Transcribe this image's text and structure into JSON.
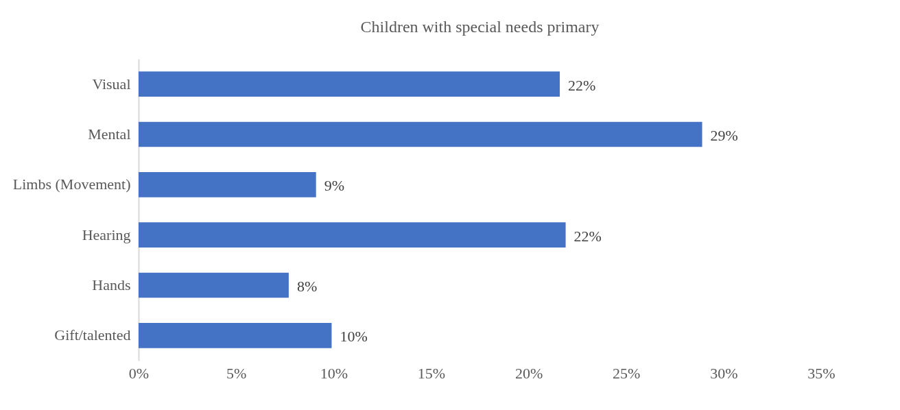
{
  "chart_data": {
    "type": "bar",
    "orientation": "horizontal",
    "title": "Children with special needs primary",
    "categories": [
      "Visual",
      "Mental",
      "Limbs (Movement)",
      "Hearing",
      "Hands",
      "Gift/talented"
    ],
    "values": [
      21.6,
      28.9,
      9.1,
      21.9,
      7.7,
      9.9
    ],
    "value_labels": [
      "22%",
      "29%",
      "9%",
      "22%",
      "8%",
      "10%"
    ],
    "color": "#4472c4",
    "xlim": [
      0,
      35
    ],
    "xticks": [
      {
        "value": 0,
        "label": "0%"
      },
      {
        "value": 5,
        "label": "5%"
      },
      {
        "value": 10,
        "label": "10%"
      },
      {
        "value": 15,
        "label": "15%"
      },
      {
        "value": 20,
        "label": "20%"
      },
      {
        "value": 25,
        "label": "25%"
      },
      {
        "value": 30,
        "label": "30%"
      },
      {
        "value": 35,
        "label": "35%"
      }
    ],
    "grid": false
  }
}
